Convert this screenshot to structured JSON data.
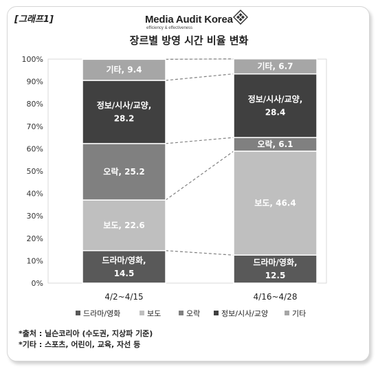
{
  "tag": "[그래프1]",
  "logo": {
    "name": "Media Audit Korea",
    "tagline": "efficiency & effectiveness"
  },
  "chart_data": {
    "type": "bar",
    "stacked": true,
    "title": "장르별 방영 시간 비율 변화",
    "categories": [
      "4/2~4/15",
      "4/16~4/28"
    ],
    "series": [
      {
        "name": "드라마/영화",
        "values": [
          14.5,
          12.5
        ],
        "color": "#595959",
        "text_color": "#ffffff",
        "labels": [
          "드라마/영화,\n14.5",
          "드라마/영화,\n12.5"
        ]
      },
      {
        "name": "보도",
        "values": [
          22.6,
          46.4
        ],
        "color": "#bfbfbf",
        "text_color": "#ffffff",
        "labels": [
          "보도, 22.6",
          "보도, 46.4"
        ]
      },
      {
        "name": "오락",
        "values": [
          25.2,
          6.1
        ],
        "color": "#808080",
        "text_color": "#ffffff",
        "labels": [
          "오락, 25.2",
          "오락, 6.1"
        ]
      },
      {
        "name": "정보/시사/교양",
        "values": [
          28.2,
          28.4
        ],
        "color": "#404040",
        "text_color": "#ffffff",
        "labels": [
          "정보/시사/교양,\n28.2",
          "정보/시사/교양,\n28.4"
        ]
      },
      {
        "name": "기타",
        "values": [
          9.4,
          6.7
        ],
        "color": "#a6a6a6",
        "text_color": "#ffffff",
        "labels": [
          "기타, 9.4",
          "기타, 6.7"
        ]
      }
    ],
    "yaxis": {
      "min": 0,
      "max": 100,
      "step": 10,
      "suffix": "%"
    },
    "legend_position": "bottom",
    "connector_lines": true
  },
  "notes": {
    "source": "*출처 : 닐슨코리아 (수도권, 지상파 기준)",
    "other": "*기타 : 스포츠, 어린이, 교육, 자선 등"
  }
}
